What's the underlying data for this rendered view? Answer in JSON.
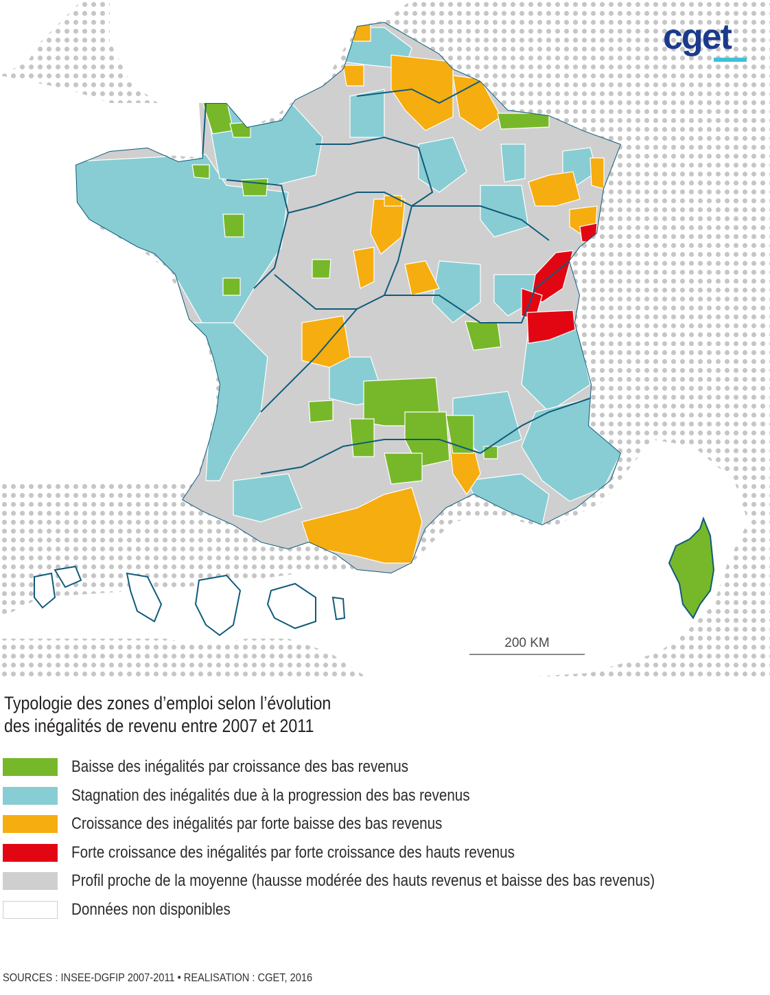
{
  "map": {
    "title_lines": [
      "Typologie des zones d’emploi selon l’évolution",
      "des inégalités de revenu entre 2007 et 2011"
    ],
    "colors": {
      "sea_dot": "#c6c6c6",
      "land_gray": "#cfcfcf",
      "green": "#77b82a",
      "blue": "#88cdd3",
      "orange": "#f6ad0f",
      "red": "#e20613",
      "white": "#ffffff",
      "region_border": "#0f5a7a",
      "zone_border": "#ffffff"
    },
    "scale_label": "200 KM",
    "logo_text": "cget",
    "legend": [
      {
        "key": "green",
        "label": "Baisse des inégalités par croissance des bas revenus"
      },
      {
        "key": "blue",
        "label": "Stagnation des inégalités due à la progression des bas revenus"
      },
      {
        "key": "orange",
        "label": "Croissance des inégalités par forte baisse des bas revenus"
      },
      {
        "key": "red",
        "label": "Forte croissance des inégalités par forte croissance des hauts revenus"
      },
      {
        "key": "gray",
        "label": "Profil proche de la moyenne (hausse modérée des hauts revenus et baisse des bas revenus)"
      },
      {
        "key": "white",
        "label": "Données non disponibles"
      }
    ],
    "sources": "SOURCES : INSEE-DGFIP 2007-2011 • REALISATION : CGET, 2016"
  }
}
